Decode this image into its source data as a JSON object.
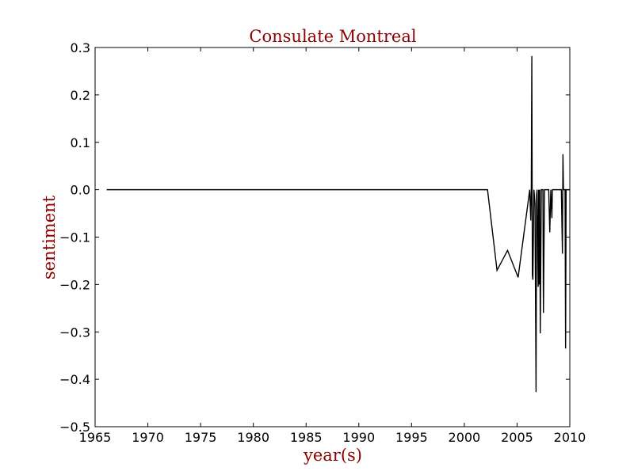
{
  "chart_data": {
    "type": "line",
    "title": "Consulate Montreal",
    "xlabel": "year(s)",
    "ylabel": "sentiment",
    "xlim": [
      1965,
      2010
    ],
    "ylim": [
      -0.5,
      0.3
    ],
    "xticks": [
      1965,
      1970,
      1975,
      1980,
      1985,
      1990,
      1995,
      2000,
      2005,
      2010
    ],
    "yticks": [
      0.3,
      0.2,
      0.1,
      0.0,
      -0.1,
      -0.2,
      -0.3,
      -0.4,
      -0.5
    ],
    "ytick_labels": [
      "0.3",
      "0.2",
      "0.1",
      "0.0",
      "−0.1",
      "−0.2",
      "−0.3",
      "−0.4",
      "−0.5"
    ],
    "grid": false,
    "series": [
      {
        "color": "#000000",
        "x": [
          1966.1,
          2002.2,
          2003.1,
          2004.1,
          2005.1,
          2006.2,
          2006.3,
          2006.35,
          2006.4,
          2006.45,
          2006.5,
          2006.6,
          2006.7,
          2006.8,
          2006.85,
          2006.9,
          2007.0,
          2007.05,
          2007.1,
          2007.15,
          2007.2,
          2007.3,
          2007.35,
          2007.45,
          2007.5,
          2007.6,
          2007.75,
          2007.9,
          2008.0,
          2008.1,
          2008.2,
          2008.3,
          2008.35,
          2008.5,
          2008.65,
          2008.8,
          2009.0,
          2009.2,
          2009.3,
          2009.35,
          2009.4,
          2009.5,
          2009.55,
          2009.6,
          2009.65,
          2009.75,
          2009.9,
          2010.0
        ],
        "y": [
          0.0,
          0.0,
          -0.17,
          -0.128,
          -0.185,
          0.0,
          -0.065,
          0.0,
          0.282,
          -0.18,
          -0.19,
          0.0,
          -0.03,
          -0.427,
          -0.01,
          0.0,
          -0.205,
          0.0,
          -0.2,
          0.0,
          -0.303,
          0.0,
          0.0,
          0.0,
          -0.26,
          0.0,
          0.0,
          0.0,
          0.0,
          -0.09,
          0.0,
          -0.06,
          0.0,
          0.0,
          0.0,
          0.0,
          0.0,
          0.0,
          -0.135,
          0.075,
          0.0,
          0.0,
          0.0,
          -0.335,
          0.0,
          0.0,
          0.0,
          0.0
        ]
      }
    ],
    "colors": {
      "title": "#8b0000",
      "axis_label": "#8b0000",
      "line": "#000000",
      "frame": "#000000"
    }
  }
}
